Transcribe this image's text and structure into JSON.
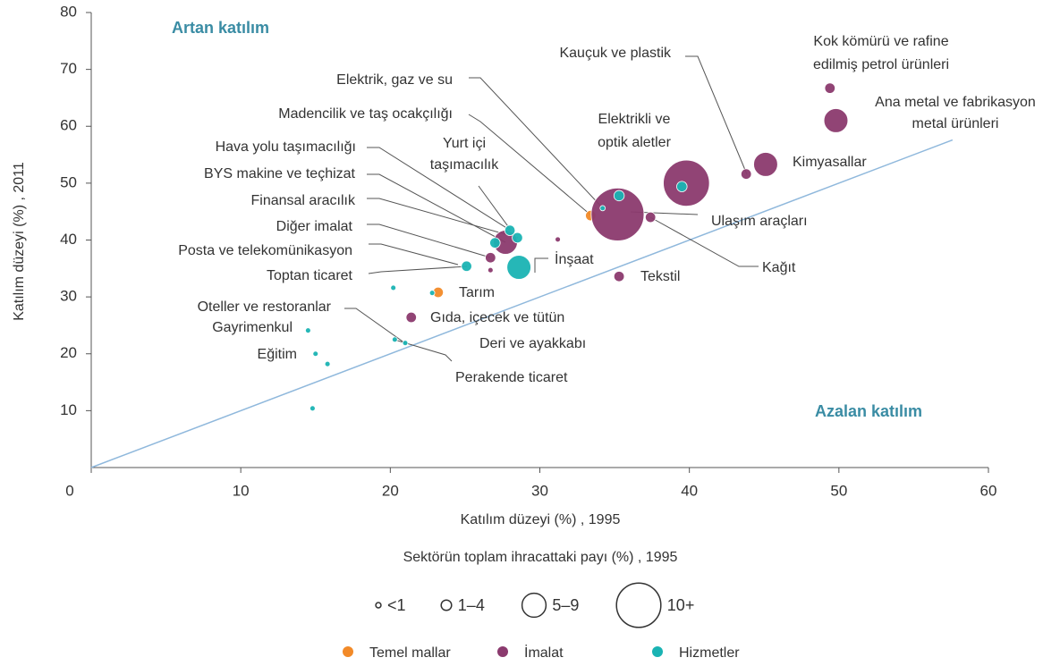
{
  "chart_data": {
    "type": "scatter",
    "x_label": "Katılım düzeyi (%) , 1995",
    "y_label": "Katılım düzeyi (%) , 2011",
    "xlim": [
      0,
      60
    ],
    "xticks": [
      0,
      10,
      20,
      30,
      40,
      50,
      60
    ],
    "ylim": [
      0,
      80
    ],
    "yticks": [
      10,
      20,
      30,
      40,
      50,
      60,
      70,
      80
    ],
    "diagonal": {
      "x": [
        0,
        57.6
      ],
      "y": [
        0,
        57.6
      ],
      "color": "#8fb8dc"
    },
    "region_labels": [
      "Artan katılım",
      "Azalan katılım"
    ],
    "series": [
      {
        "name": "Temel mallar",
        "color": "#f28a28",
        "x": [
          23.2,
          33.4
        ],
        "y": [
          30.8,
          44.3
        ],
        "sizes": [
          2,
          2
        ]
      },
      {
        "name": "İmalat",
        "color": "#8b3a6e",
        "x": [
          49.4,
          49.8,
          45.1,
          43.8,
          39.8,
          35.2,
          37.4,
          31.2,
          27.7,
          26.7,
          26.7,
          35.3,
          21.4
        ],
        "y": [
          66.7,
          61.0,
          53.3,
          51.6,
          50.0,
          44.5,
          44.0,
          40.1,
          39.6,
          36.9,
          34.7,
          33.6,
          26.4
        ],
        "sizes": [
          2,
          6,
          6,
          2,
          12.5,
          14.5,
          2,
          0.5,
          6,
          2,
          0.5,
          2,
          2
        ]
      },
      {
        "name": "Hizmetler",
        "color": "#1ab3b3",
        "x": [
          39.5,
          35.3,
          34.2,
          28.0,
          28.5,
          27.0,
          25.1,
          28.6,
          20.2,
          22.8,
          14.5,
          20.3,
          21.0,
          15.0,
          15.8,
          14.8
        ],
        "y": [
          49.4,
          47.8,
          45.6,
          41.7,
          40.4,
          39.5,
          35.4,
          35.2,
          31.6,
          30.7,
          24.1,
          22.5,
          21.9,
          20.0,
          18.2,
          10.4
        ],
        "sizes": [
          2,
          2,
          0.5,
          2,
          2,
          2,
          2,
          6,
          0.5,
          0.5,
          0.5,
          0.5,
          0.5,
          0.5,
          0.5,
          0.5
        ]
      }
    ],
    "annotations": [
      {
        "text": [
          "Kauçuk ve plastik"
        ]
      },
      {
        "text": [
          "Kok kömürü ve rafine",
          "edilmiş petrol ürünleri"
        ]
      },
      {
        "text": [
          "Ana metal ve fabrikasyon",
          "metal ürünleri"
        ]
      },
      {
        "text": [
          "Kimyasallar"
        ]
      },
      {
        "text": [
          "Elektrikli ve",
          "optik aletler"
        ]
      },
      {
        "text": [
          "Ulaşım araçları"
        ]
      },
      {
        "text": [
          "Kağıt"
        ]
      },
      {
        "text": [
          "Tekstil"
        ]
      },
      {
        "text": [
          "İnşaat"
        ]
      },
      {
        "text": [
          "Tarım"
        ]
      },
      {
        "text": [
          "Gıda, içecek ve tütün"
        ]
      },
      {
        "text": [
          "Deri ve ayakkabı"
        ]
      },
      {
        "text": [
          "Perakende ticaret"
        ]
      },
      {
        "text": [
          "Elektrik, gaz ve su"
        ]
      },
      {
        "text": [
          "Madencilik ve taş ocakçılığı"
        ]
      },
      {
        "text": [
          "Yurt içi",
          "taşımacılık"
        ]
      },
      {
        "text": [
          "Hava yolu taşımacılığı"
        ]
      },
      {
        "text": [
          "BYS makine ve teçhizat"
        ]
      },
      {
        "text": [
          "Finansal aracılık"
        ]
      },
      {
        "text": [
          "Diğer imalat"
        ]
      },
      {
        "text": [
          "Posta ve telekomünikasyon"
        ]
      },
      {
        "text": [
          "Toptan ticaret"
        ]
      },
      {
        "text": [
          "Oteller ve restoranlar"
        ]
      },
      {
        "text": [
          "Gayrimenkul"
        ]
      },
      {
        "text": [
          "Eğitim"
        ]
      }
    ],
    "size_legend": {
      "title": "Sektörün toplam ihracattaki payı (%) , 1995",
      "items": [
        {
          "label": "<1",
          "size": 0.5
        },
        {
          "label": "1–4",
          "size": 2
        },
        {
          "label": "5–9",
          "size": 6
        },
        {
          "label": "10+",
          "size": 12
        }
      ]
    }
  }
}
